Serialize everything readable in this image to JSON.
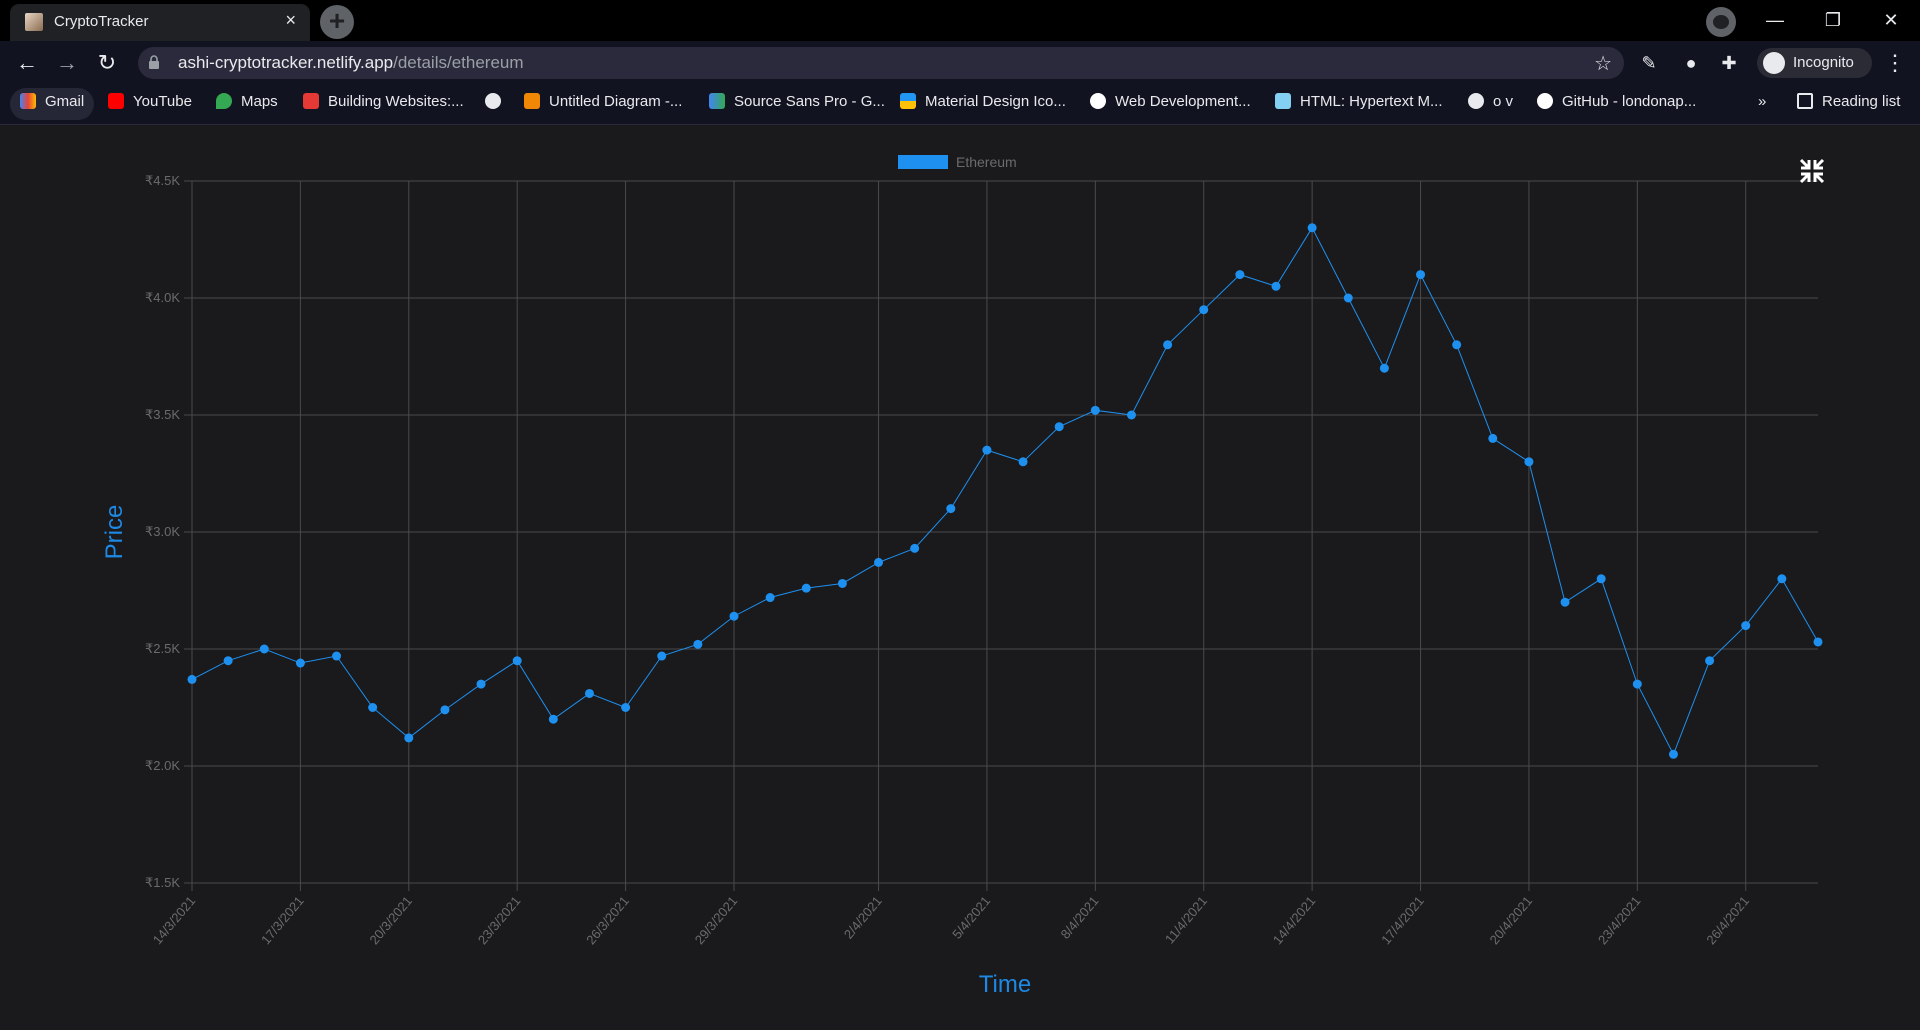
{
  "browser": {
    "tab_title": "CryptoTracker",
    "url_domain": "ashi-cryptotracker.netlify.app",
    "url_path": "/details/ethereum",
    "profile_label": "Incognito",
    "bookmarks": [
      "Gmail",
      "YouTube",
      "Maps",
      "Building Websites:...",
      "Untitled Diagram -...",
      "Source Sans Pro - G...",
      "Material Design Ico...",
      "Web Development...",
      "HTML: Hypertext M...",
      "o v",
      "GitHub - londonap...",
      "Reading list"
    ],
    "more_bookmarks": "»"
  },
  "icons": {
    "back": "arrow-left-icon",
    "forward": "arrow-right-icon",
    "reload": "reload-icon",
    "lock": "lock-icon",
    "star": "bookmark-star-icon",
    "extensions": "puzzle-icon",
    "collapse": "fullscreen-exit-icon"
  },
  "colors": {
    "series": "#1e90f0",
    "axis_title": "#1e88e5",
    "grid": "#4a4a4d",
    "tick": "#6b6b6b"
  },
  "chart_data": {
    "type": "scatter",
    "connected": true,
    "title": "",
    "xlabel": "Time",
    "ylabel": "Price",
    "legend": {
      "position": "top",
      "entries": [
        "Ethereum"
      ]
    },
    "ylim": [
      1500,
      4500
    ],
    "yticks": [
      "₹1.5K",
      "₹2.0K",
      "₹2.5K",
      "₹3.0K",
      "₹3.5K",
      "₹4.0K",
      "₹4.5K"
    ],
    "xticks": [
      "14/3/2021",
      "17/3/2021",
      "20/3/2021",
      "23/3/2021",
      "26/3/2021",
      "29/3/2021",
      "2/4/2021",
      "5/4/2021",
      "8/4/2021",
      "11/4/2021",
      "14/4/2021",
      "17/4/2021",
      "20/4/2021",
      "23/4/2021",
      "26/4/2021"
    ],
    "x_start": "2021-03-14",
    "x_end": "2021-04-28",
    "series": [
      {
        "name": "Ethereum",
        "x": [
          "2021-03-14",
          "2021-03-15",
          "2021-03-16",
          "2021-03-17",
          "2021-03-18",
          "2021-03-19",
          "2021-03-20",
          "2021-03-21",
          "2021-03-22",
          "2021-03-23",
          "2021-03-24",
          "2021-03-25",
          "2021-03-26",
          "2021-03-27",
          "2021-03-28",
          "2021-03-29",
          "2021-03-30",
          "2021-03-31",
          "2021-04-01",
          "2021-04-02",
          "2021-04-03",
          "2021-04-04",
          "2021-04-05",
          "2021-04-06",
          "2021-04-07",
          "2021-04-08",
          "2021-04-09",
          "2021-04-10",
          "2021-04-11",
          "2021-04-12",
          "2021-04-13",
          "2021-04-14",
          "2021-04-15",
          "2021-04-16",
          "2021-04-17",
          "2021-04-18",
          "2021-04-19",
          "2021-04-20",
          "2021-04-21",
          "2021-04-22",
          "2021-04-23",
          "2021-04-24",
          "2021-04-25",
          "2021-04-26",
          "2021-04-27",
          "2021-04-28"
        ],
        "values": [
          2370,
          2450,
          2500,
          2440,
          2470,
          2250,
          2120,
          2240,
          2350,
          2450,
          2200,
          2310,
          2250,
          2470,
          2520,
          2640,
          2720,
          2760,
          2780,
          2870,
          2930,
          3100,
          3350,
          3300,
          3450,
          3520,
          3500,
          3800,
          3950,
          4100,
          4050,
          4300,
          4000,
          3700,
          4100,
          3800,
          3400,
          3300,
          2700,
          2800,
          2350,
          2050,
          2450,
          2600,
          2800,
          2530
        ]
      }
    ]
  }
}
